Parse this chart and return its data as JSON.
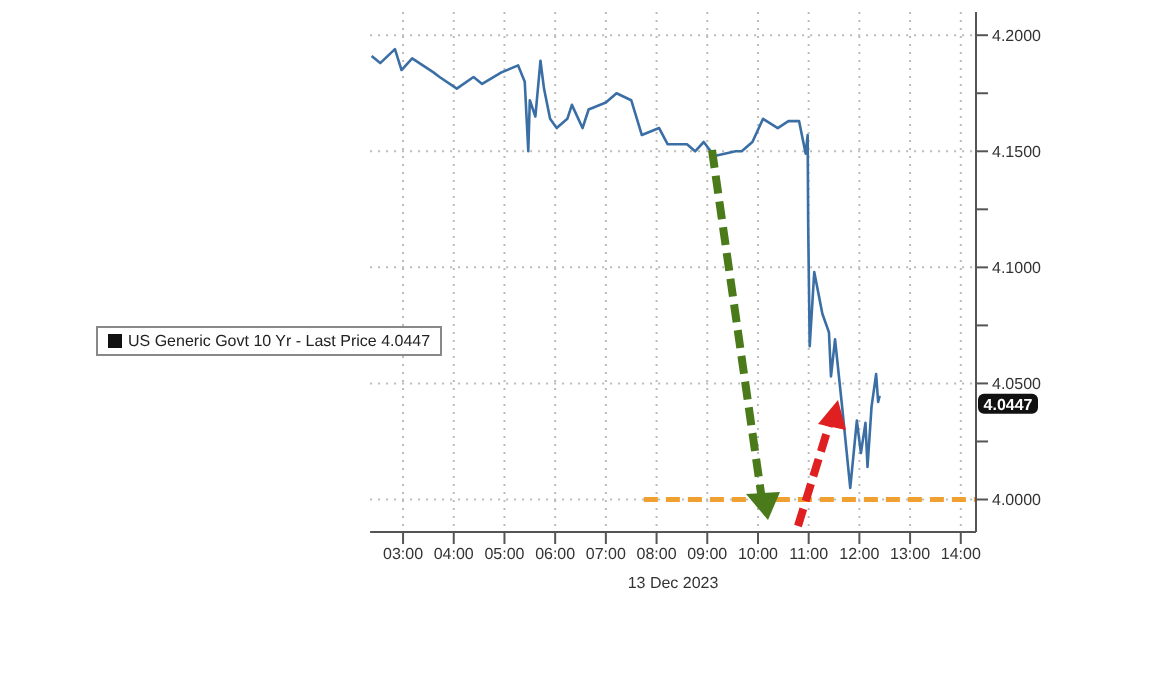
{
  "chart_data": {
    "type": "line",
    "xlabel": "13 Dec 2023",
    "xlim": [
      2.35,
      14.3
    ],
    "xticks": [
      {
        "value": 3,
        "label": "03:00"
      },
      {
        "value": 4,
        "label": "04:00"
      },
      {
        "value": 5,
        "label": "05:00"
      },
      {
        "value": 6,
        "label": "06:00"
      },
      {
        "value": 7,
        "label": "07:00"
      },
      {
        "value": 8,
        "label": "08:00"
      },
      {
        "value": 9,
        "label": "09:00"
      },
      {
        "value": 10,
        "label": "10:00"
      },
      {
        "value": 11,
        "label": "11:00"
      },
      {
        "value": 12,
        "label": "12:00"
      },
      {
        "value": 13,
        "label": "13:00"
      },
      {
        "value": 14,
        "label": "14:00"
      }
    ],
    "ylim": [
      3.986,
      4.21
    ],
    "yticks": [
      {
        "value": 4.0,
        "label": "4.0000"
      },
      {
        "value": 4.025,
        "label": null
      },
      {
        "value": 4.05,
        "label": "4.0500"
      },
      {
        "value": 4.075,
        "label": null
      },
      {
        "value": 4.1,
        "label": "4.1000"
      },
      {
        "value": 4.125,
        "label": null
      },
      {
        "value": 4.15,
        "label": "4.1500"
      },
      {
        "value": 4.175,
        "label": null
      },
      {
        "value": 4.2,
        "label": "4.2000"
      }
    ],
    "grid": true,
    "legend": "left",
    "series": [
      {
        "name": "US Generic Govt 10 Yr - Last Price 4.0447",
        "color": "#3a6ea5",
        "x": [
          2.38,
          2.55,
          2.84,
          2.97,
          3.18,
          3.39,
          3.6,
          3.72,
          4.06,
          4.39,
          4.56,
          4.94,
          5.27,
          5.4,
          5.47,
          5.5,
          5.61,
          5.71,
          5.78,
          5.9,
          6.03,
          6.24,
          6.33,
          6.54,
          6.66,
          7.0,
          7.21,
          7.5,
          7.71,
          8.05,
          8.22,
          8.6,
          8.76,
          8.93,
          9.14,
          9.56,
          9.68,
          9.89,
          10.1,
          10.39,
          10.6,
          10.81,
          10.94,
          10.98,
          10.99,
          11.02,
          11.11,
          11.27,
          11.4,
          11.44,
          11.52,
          11.65,
          11.82,
          11.95,
          12.03,
          12.12,
          12.16,
          12.24,
          12.33,
          12.37,
          12.4
        ],
        "values": [
          4.191,
          4.188,
          4.194,
          4.185,
          4.19,
          4.187,
          4.184,
          4.182,
          4.177,
          4.182,
          4.179,
          4.184,
          4.187,
          4.18,
          4.15,
          4.172,
          4.165,
          4.189,
          4.177,
          4.164,
          4.16,
          4.164,
          4.17,
          4.16,
          4.168,
          4.171,
          4.175,
          4.172,
          4.157,
          4.16,
          4.153,
          4.153,
          4.15,
          4.154,
          4.148,
          4.15,
          4.15,
          4.154,
          4.164,
          4.16,
          4.163,
          4.163,
          4.149,
          4.157,
          4.119,
          4.066,
          4.098,
          4.08,
          4.072,
          4.053,
          4.069,
          4.042,
          4.005,
          4.034,
          4.02,
          4.033,
          4.014,
          4.04,
          4.054,
          4.042,
          4.0447
        ]
      },
      {
        "type": "line",
        "color": "#f0a030",
        "line_style": "dashed",
        "x": [
          7.75,
          14.3
        ],
        "values": [
          4.0,
          4.0
        ]
      }
    ],
    "annotations": [
      "4.0447"
    ]
  }
}
